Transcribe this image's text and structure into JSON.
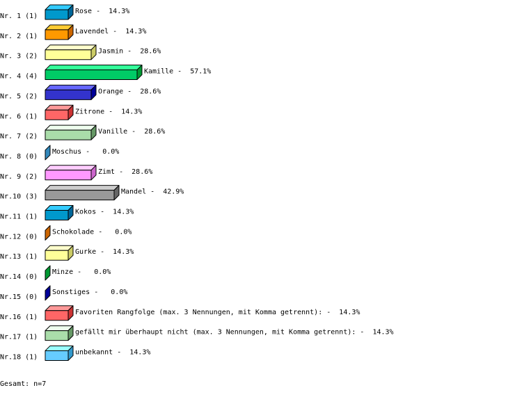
{
  "chart_data": {
    "type": "bar",
    "orientation": "horizontal",
    "style": "3d",
    "total_label": "Gesamt: n=7",
    "items": [
      {
        "nr": "Nr. 1",
        "count": 1,
        "name": "Rose",
        "percent": "14.3%",
        "colors": {
          "front": "#0099cc",
          "top": "#33ccff",
          "side": "#006699"
        }
      },
      {
        "nr": "Nr. 2",
        "count": 1,
        "name": "Lavendel",
        "percent": "14.3%",
        "colors": {
          "front": "#ff9900",
          "top": "#ffcc33",
          "side": "#cc6600"
        }
      },
      {
        "nr": "Nr. 3",
        "count": 2,
        "name": "Jasmin",
        "percent": "28.6%",
        "colors": {
          "front": "#ffff99",
          "top": "#ffffcc",
          "side": "#cccc66"
        }
      },
      {
        "nr": "Nr. 4",
        "count": 4,
        "name": "Kamille",
        "percent": "57.1%",
        "colors": {
          "front": "#00cc66",
          "top": "#33ff99",
          "side": "#009933"
        }
      },
      {
        "nr": "Nr. 5",
        "count": 2,
        "name": "Orange",
        "percent": "28.6%",
        "colors": {
          "front": "#3333cc",
          "top": "#6666ff",
          "side": "#000099"
        }
      },
      {
        "nr": "Nr. 6",
        "count": 1,
        "name": "Zitrone",
        "percent": "14.3%",
        "colors": {
          "front": "#ff6666",
          "top": "#ff9999",
          "side": "#cc3333"
        }
      },
      {
        "nr": "Nr. 7",
        "count": 2,
        "name": "Vanille",
        "percent": "28.6%",
        "colors": {
          "front": "#aaddaa",
          "top": "#eeffee",
          "side": "#669966"
        }
      },
      {
        "nr": "Nr. 8",
        "count": 0,
        "name": "Moschus",
        "percent": "0.0%",
        "colors": {
          "front": "#3388bb",
          "top": "#66bbee",
          "side": "#3388bb"
        }
      },
      {
        "nr": "Nr. 9",
        "count": 2,
        "name": "Zimt",
        "percent": "28.6%",
        "colors": {
          "front": "#ff99ff",
          "top": "#ffccff",
          "side": "#cc66cc"
        }
      },
      {
        "nr": "Nr.10",
        "count": 3,
        "name": "Mandel",
        "percent": "42.9%",
        "colors": {
          "front": "#999999",
          "top": "#cccccc",
          "side": "#666666"
        }
      },
      {
        "nr": "Nr.11",
        "count": 1,
        "name": "Kokos",
        "percent": "14.3%",
        "colors": {
          "front": "#0099cc",
          "top": "#33ccff",
          "side": "#006699"
        }
      },
      {
        "nr": "Nr.12",
        "count": 0,
        "name": "Schokolade",
        "percent": "0.0%",
        "colors": {
          "front": "#cc6600",
          "top": "#ff9933",
          "side": "#cc6600"
        }
      },
      {
        "nr": "Nr.13",
        "count": 1,
        "name": "Gurke",
        "percent": "14.3%",
        "colors": {
          "front": "#ffff99",
          "top": "#ffffcc",
          "side": "#cccc66"
        }
      },
      {
        "nr": "Nr.14",
        "count": 0,
        "name": "Minze",
        "percent": "0.0%",
        "colors": {
          "front": "#009933",
          "top": "#33cc66",
          "side": "#009933"
        }
      },
      {
        "nr": "Nr.15",
        "count": 0,
        "name": "Sonstiges",
        "percent": "0.0%",
        "colors": {
          "front": "#000099",
          "top": "#3333cc",
          "side": "#000099"
        }
      },
      {
        "nr": "Nr.16",
        "count": 1,
        "name": "Favoriten Rangfolge (max. 3 Nennungen, mit Komma getrennt):",
        "percent": "14.3%",
        "colors": {
          "front": "#ff6666",
          "top": "#ff9999",
          "side": "#cc3333"
        }
      },
      {
        "nr": "Nr.17",
        "count": 1,
        "name": "gefällt mir überhaupt nicht (max. 3 Nennungen, mit Komma getrennt):",
        "percent": "14.3%",
        "colors": {
          "front": "#aaddaa",
          "top": "#eeffee",
          "side": "#669966"
        }
      },
      {
        "nr": "Nr.18",
        "count": 1,
        "name": "unbekannt",
        "percent": "14.3%",
        "colors": {
          "front": "#66ccff",
          "top": "#99ffff",
          "side": "#3399cc"
        }
      }
    ]
  }
}
